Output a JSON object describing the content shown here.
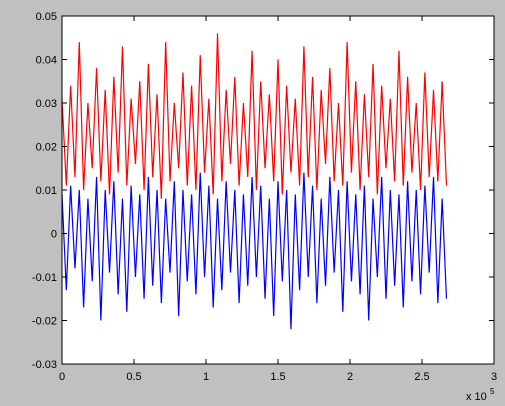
{
  "chart_data": {
    "type": "line",
    "x": [
      0,
      0.03,
      0.06,
      0.09,
      0.12,
      0.15,
      0.18,
      0.21,
      0.24,
      0.27,
      0.3,
      0.33,
      0.36,
      0.39,
      0.42,
      0.45,
      0.48,
      0.51,
      0.54,
      0.57,
      0.6,
      0.63,
      0.66,
      0.69,
      0.72,
      0.75,
      0.78,
      0.81,
      0.84,
      0.87,
      0.9,
      0.93,
      0.96,
      0.99,
      1.02,
      1.05,
      1.08,
      1.11,
      1.14,
      1.17,
      1.2,
      1.23,
      1.26,
      1.29,
      1.32,
      1.35,
      1.38,
      1.41,
      1.44,
      1.47,
      1.5,
      1.53,
      1.56,
      1.59,
      1.62,
      1.65,
      1.68,
      1.71,
      1.74,
      1.77,
      1.8,
      1.83,
      1.86,
      1.89,
      1.92,
      1.95,
      1.98,
      2.01,
      2.04,
      2.07,
      2.1,
      2.13,
      2.16,
      2.19,
      2.22,
      2.25,
      2.28,
      2.31,
      2.34,
      2.37,
      2.4,
      2.43,
      2.46,
      2.49,
      2.52,
      2.55,
      2.58,
      2.61,
      2.64,
      2.67
    ],
    "series": [
      {
        "color": "#ff0000",
        "values": [
          0.031,
          0.011,
          0.034,
          0.013,
          0.044,
          0.01,
          0.03,
          0.015,
          0.038,
          0.012,
          0.033,
          0.009,
          0.036,
          0.014,
          0.043,
          0.011,
          0.031,
          0.016,
          0.035,
          0.01,
          0.039,
          0.013,
          0.032,
          0.008,
          0.044,
          0.012,
          0.03,
          0.015,
          0.037,
          0.011,
          0.034,
          0.01,
          0.041,
          0.014,
          0.031,
          0.009,
          0.046,
          0.012,
          0.033,
          0.016,
          0.036,
          0.011,
          0.03,
          0.013,
          0.042,
          0.01,
          0.035,
          0.015,
          0.032,
          0.012,
          0.04,
          0.009,
          0.034,
          0.014,
          0.031,
          0.011,
          0.043,
          0.013,
          0.036,
          0.01,
          0.033,
          0.016,
          0.038,
          0.012,
          0.03,
          0.011,
          0.044,
          0.014,
          0.035,
          0.01,
          0.032,
          0.013,
          0.039,
          0.009,
          0.034,
          0.015,
          0.031,
          0.012,
          0.042,
          0.011,
          0.036,
          0.014,
          0.03,
          0.01,
          0.037,
          0.013,
          0.033,
          0.012,
          0.035,
          0.011
        ]
      },
      {
        "color": "#0000ff",
        "values": [
          0.009,
          -0.013,
          0.011,
          -0.008,
          0.01,
          -0.017,
          0.008,
          -0.011,
          0.013,
          -0.02,
          0.01,
          -0.009,
          0.012,
          -0.014,
          0.008,
          -0.018,
          0.011,
          -0.01,
          0.009,
          -0.015,
          0.013,
          -0.012,
          0.01,
          -0.016,
          0.008,
          -0.009,
          0.012,
          -0.019,
          0.01,
          -0.011,
          0.009,
          -0.014,
          0.014,
          -0.01,
          0.011,
          -0.017,
          0.008,
          -0.013,
          0.012,
          -0.009,
          0.01,
          -0.016,
          0.009,
          -0.012,
          0.013,
          -0.01,
          0.011,
          -0.015,
          0.008,
          -0.019,
          0.012,
          -0.011,
          0.01,
          -0.022,
          0.009,
          -0.013,
          0.014,
          -0.01,
          0.011,
          -0.016,
          0.008,
          -0.012,
          0.013,
          -0.009,
          0.01,
          -0.018,
          0.012,
          -0.011,
          0.009,
          -0.014,
          0.011,
          -0.02,
          0.008,
          -0.01,
          0.013,
          -0.015,
          0.01,
          -0.012,
          0.009,
          -0.017,
          0.012,
          -0.011,
          0.01,
          -0.014,
          0.011,
          -0.009,
          0.013,
          -0.016,
          0.008,
          -0.015
        ]
      }
    ],
    "xlim": [
      0,
      3
    ],
    "xticks": [
      0,
      0.5,
      1,
      1.5,
      2,
      2.5,
      3
    ],
    "ylim": [
      -0.03,
      0.05
    ],
    "yticks": [
      -0.03,
      -0.02,
      -0.01,
      0,
      0.01,
      0.02,
      0.03,
      0.04,
      0.05
    ],
    "x_exponent": {
      "base": "x 10",
      "power": "5"
    }
  }
}
